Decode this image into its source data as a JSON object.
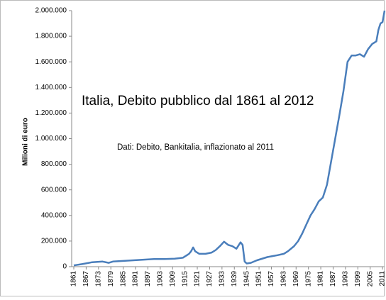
{
  "chart_data": {
    "type": "line",
    "title": "Italia, Debito pubblico dal 1861 al 2012",
    "subtitle": "Dati: Debito, Bankitalia, inflazionato al 2011",
    "y_label": "Milioni di euro",
    "color": "#4a7ebb",
    "x": [
      1861,
      1865,
      1870,
      1875,
      1878,
      1880,
      1885,
      1890,
      1895,
      1900,
      1905,
      1910,
      1914,
      1917,
      1918,
      1919,
      1920,
      1922,
      1925,
      1928,
      1930,
      1932,
      1934,
      1936,
      1938,
      1940,
      1942,
      1943,
      1944,
      1945,
      1947,
      1950,
      1955,
      1960,
      1963,
      1965,
      1968,
      1970,
      1972,
      1974,
      1976,
      1978,
      1980,
      1982,
      1984,
      1986,
      1988,
      1990,
      1992,
      1994,
      1996,
      1998,
      2000,
      2002,
      2004,
      2006,
      2008,
      2009,
      2010,
      2011,
      2012
    ],
    "values": [
      10000,
      20000,
      35000,
      40000,
      30000,
      40000,
      45000,
      50000,
      55000,
      60000,
      60000,
      62000,
      70000,
      100000,
      120000,
      150000,
      120000,
      100000,
      100000,
      110000,
      130000,
      160000,
      195000,
      170000,
      160000,
      140000,
      190000,
      170000,
      40000,
      25000,
      30000,
      50000,
      75000,
      90000,
      100000,
      120000,
      160000,
      200000,
      260000,
      330000,
      400000,
      450000,
      510000,
      540000,
      640000,
      820000,
      1000000,
      1180000,
      1370000,
      1600000,
      1650000,
      1650000,
      1660000,
      1640000,
      1700000,
      1740000,
      1760000,
      1850000,
      1900000,
      1910000,
      2000000
    ],
    "xlim": [
      1861,
      2012
    ],
    "xticks": [
      1861,
      1867,
      1873,
      1879,
      1885,
      1891,
      1897,
      1903,
      1909,
      1915,
      1921,
      1927,
      1933,
      1939,
      1945,
      1951,
      1957,
      1963,
      1969,
      1975,
      1981,
      1987,
      1993,
      1999,
      2005,
      2011
    ],
    "ylim": [
      0,
      2000000
    ],
    "yticks": [
      0,
      {
        "value": 200000,
        "label": "200.000"
      },
      {
        "value": 400000,
        "label": "400.000"
      },
      {
        "value": 600000,
        "label": "600.000"
      },
      {
        "value": 800000,
        "label": "800.000"
      },
      {
        "value": 1000000,
        "label": "1.000.000"
      },
      {
        "value": 1200000,
        "label": "1.200.000"
      },
      {
        "value": 1400000,
        "label": "1.400.000"
      },
      {
        "value": 1600000,
        "label": "1.600.000"
      },
      {
        "value": 1800000,
        "label": "1.800.000"
      },
      {
        "value": 2000000,
        "label": "2.000.000"
      }
    ]
  }
}
